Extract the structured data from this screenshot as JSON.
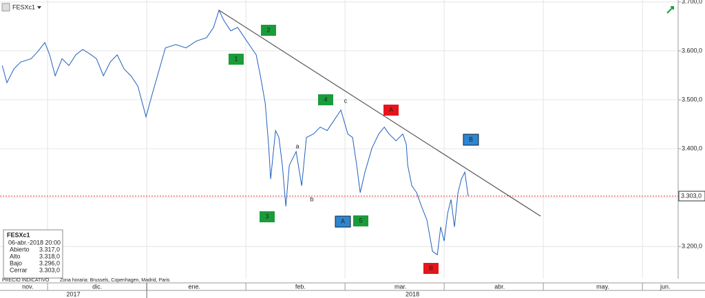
{
  "chart_data": {
    "type": "line",
    "series": [
      {
        "name": "FESXc1",
        "color": "#1f5fbf",
        "x": [
          0.542,
          0.59,
          0.66,
          0.729,
          0.834,
          0.903,
          0.972,
          1.021,
          1.077,
          1.146,
          1.215,
          1.285,
          1.354,
          1.424,
          1.493,
          1.563,
          1.632,
          1.702,
          1.771,
          1.84,
          1.91,
          1.993,
          2.049,
          2.118,
          2.188,
          2.292,
          2.396,
          2.5,
          2.604,
          2.674,
          2.729,
          2.778,
          2.847,
          2.917,
          2.986,
          3.056,
          3.104,
          3.146,
          3.195,
          3.229,
          3.25,
          3.299,
          3.333,
          3.368,
          3.403,
          3.438,
          3.507,
          3.563,
          3.611,
          3.681,
          3.75,
          3.82,
          3.889,
          3.958,
          4.028,
          4.076,
          4.118,
          4.153,
          4.201,
          4.271,
          4.34,
          4.396,
          4.444,
          4.514,
          4.583,
          4.618,
          4.632,
          4.674,
          4.722,
          4.771,
          4.826,
          4.882,
          4.931,
          4.965,
          5.0,
          5.035,
          5.069,
          5.104,
          5.139,
          5.174,
          5.208,
          5.243
        ],
        "values": [
          3570,
          3535,
          3563,
          3577,
          3584,
          3599,
          3617,
          3592,
          3549,
          3584,
          3570,
          3592,
          3603,
          3594,
          3584,
          3549,
          3577,
          3592,
          3563,
          3549,
          3528,
          3465,
          3507,
          3556,
          3606,
          3613,
          3606,
          3620,
          3627,
          3648,
          3683,
          3662,
          3641,
          3648,
          3627,
          3606,
          3592,
          3549,
          3493,
          3409,
          3338,
          3437,
          3423,
          3366,
          3282,
          3366,
          3394,
          3324,
          3423,
          3430,
          3444,
          3437,
          3458,
          3479,
          3430,
          3423,
          3366,
          3310,
          3352,
          3401,
          3430,
          3444,
          3430,
          3416,
          3430,
          3409,
          3366,
          3324,
          3310,
          3282,
          3254,
          3190,
          3183,
          3240,
          3211,
          3268,
          3296,
          3240,
          3310,
          3338,
          3352,
          3303
        ]
      }
    ],
    "xlim": [
      0.52,
      7.36
    ],
    "ylim": [
      3134,
      3704
    ],
    "yticks": [
      {
        "value": 3200,
        "label": "3.200,0"
      },
      {
        "value": 3300,
        "label": "3.300,0"
      },
      {
        "value": 3400,
        "label": "3.400,0"
      },
      {
        "value": 3500,
        "label": "3.500,0"
      },
      {
        "value": 3600,
        "label": "3.600,0"
      },
      {
        "value": 3700,
        "label": "3.700,0"
      }
    ],
    "month_boundaries": [
      1,
      2,
      3,
      4,
      5,
      6,
      7
    ],
    "months": [
      {
        "value": 0.8,
        "label": "nov."
      },
      {
        "value": 1.5,
        "label": "dic."
      },
      {
        "value": 2.48,
        "label": "ene."
      },
      {
        "value": 3.55,
        "label": "feb."
      },
      {
        "value": 4.56,
        "label": "mar."
      },
      {
        "value": 5.56,
        "label": "abr."
      },
      {
        "value": 6.6,
        "label": "may."
      },
      {
        "value": 7.23,
        "label": "jun."
      }
    ],
    "year_boundary": 2,
    "years": [
      "2017",
      "2018"
    ],
    "last_price": {
      "value": 3303,
      "label": "3.303,0"
    },
    "trendline": {
      "x": [
        2.729,
        5.972
      ],
      "y": [
        3683,
        3262
      ]
    },
    "wave_labels": [
      {
        "text": "1",
        "color": "#1a9c3a"
      },
      {
        "text": "2",
        "color": "#1a9c3a"
      },
      {
        "text": "3",
        "color": "#1a9c3a"
      },
      {
        "text": "4",
        "color": "#1a9c3a"
      },
      {
        "text": "5",
        "color": "#1a9c3a"
      },
      {
        "text": "A",
        "color": "#2e86d0"
      },
      {
        "text": "B",
        "color": "#2e86d0"
      },
      {
        "text": "A",
        "color": "#e8141b"
      },
      {
        "text": "B",
        "color": "#e8141b"
      },
      {
        "text": "a"
      },
      {
        "text": "b"
      },
      {
        "text": "c"
      }
    ],
    "info": {
      "symbol": "FESXc1",
      "date": "06-abr.-2018 20:00",
      "rows": [
        [
          "Abierto",
          "3.317,0"
        ],
        [
          "Alto",
          "3.318,0"
        ],
        [
          "Bajo",
          "3.296,0"
        ],
        [
          "Cerrar",
          "3.303,0"
        ]
      ]
    },
    "footer": [
      "PRECIO INDICATIVO",
      "Zona horaria: Brussels, Copenhagen, Madrid, Paris"
    ]
  }
}
